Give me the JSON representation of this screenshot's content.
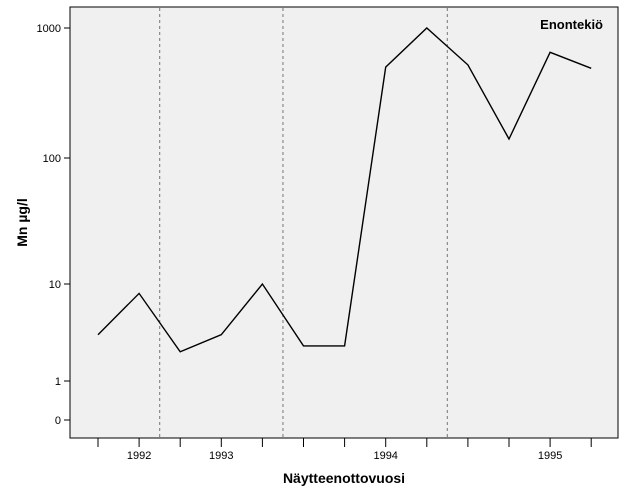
{
  "chart_data": {
    "type": "line",
    "title": "",
    "panel_label": "Enontekiö",
    "xlabel": "Näytteenottovuosi",
    "ylabel": "Mn µg/l",
    "y_scale": "log-like (0 and 1 shown below 10)",
    "y_ticks": [
      {
        "label": "1000",
        "value": 1000
      },
      {
        "label": "100",
        "value": 100
      },
      {
        "label": "10",
        "value": 10
      },
      {
        "label": "1",
        "value": 1
      },
      {
        "label": "0",
        "value": 0
      }
    ],
    "x_year_labels": [
      {
        "label": "1992",
        "at_index": 1
      },
      {
        "label": "1993",
        "at_index": 3
      },
      {
        "label": "1994",
        "at_index": 7
      },
      {
        "label": "1995",
        "at_index": 11
      }
    ],
    "year_separators_after_index": [
      1.5,
      4.5,
      8.5
    ],
    "series": [
      {
        "values": [
          3,
          8,
          2,
          3,
          10,
          2.3,
          2.3,
          500,
          1000,
          520,
          140,
          650,
          490
        ]
      }
    ],
    "grid": false,
    "legend": "none"
  },
  "colors": {
    "plot_background": "#f0f0f0",
    "line": "#000000",
    "separator": "#8a8a8a"
  }
}
